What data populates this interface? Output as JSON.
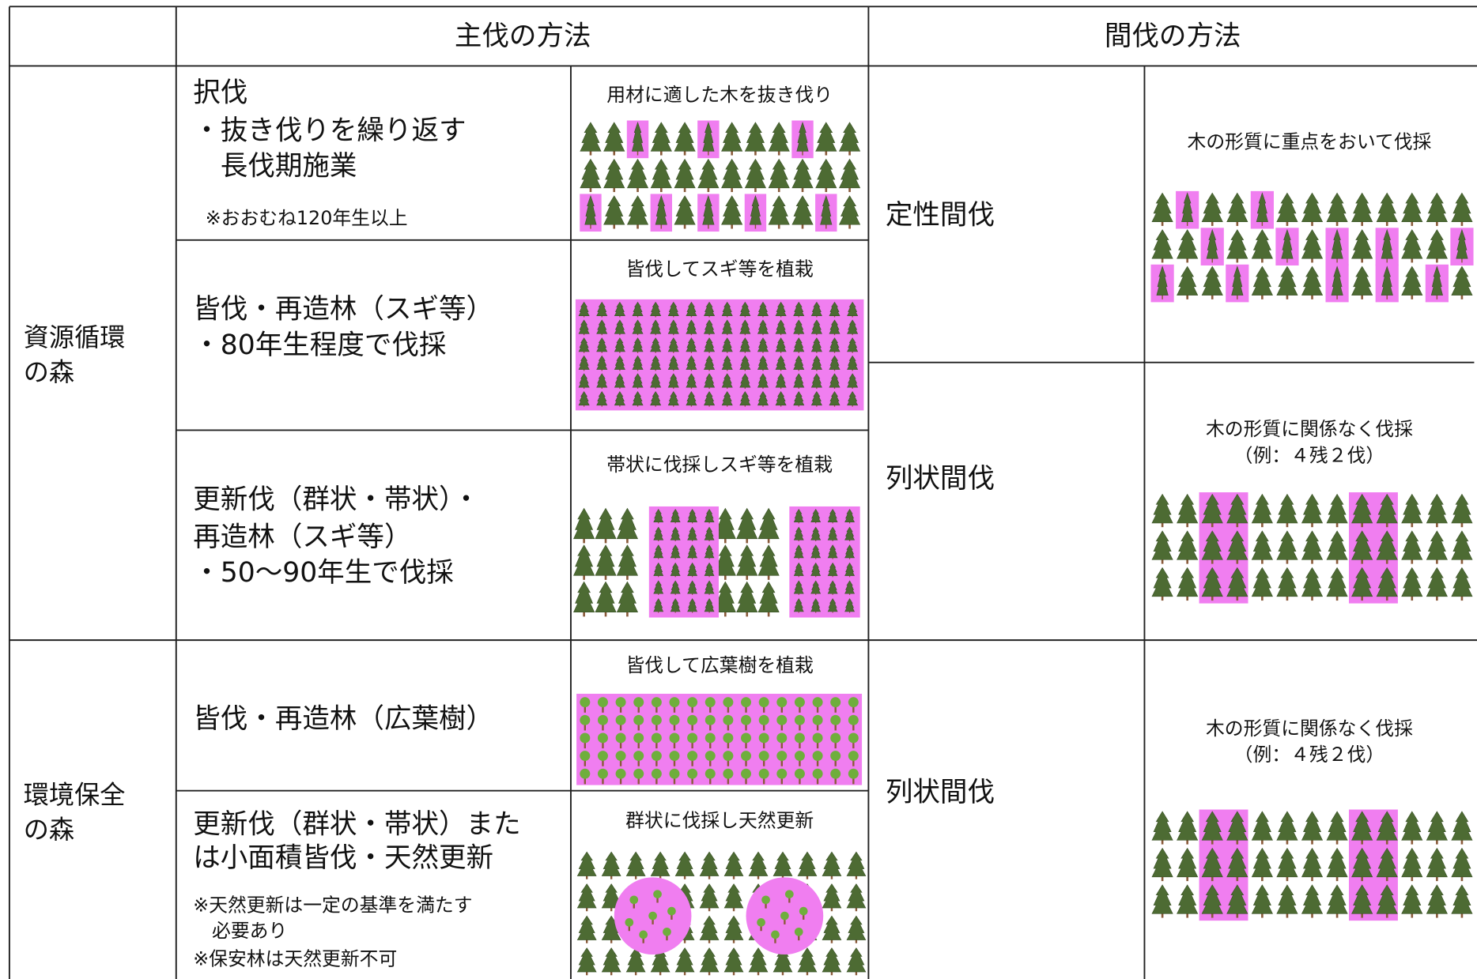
{
  "header": {
    "main_cut": "主伐の方法",
    "thinning": "間伐の方法"
  },
  "sections": [
    {
      "label": [
        "資源循環",
        "の森"
      ],
      "main": [
        {
          "lines": [
            "択伐",
            "・抜き伐りを繰り返す",
            "　長伐期施業"
          ],
          "notes": [
            "※おおむね120年生以上"
          ],
          "caption": "用材に適した木を抜き伐り"
        },
        {
          "lines": [
            "皆伐・再造林（スギ等）",
            "・80年生程度で伐採"
          ],
          "caption": "皆伐してスギ等を植栽"
        },
        {
          "lines": [
            "更新伐（群状・帯状）・",
            "再造林（スギ等）",
            "・50～90年生で伐採"
          ],
          "caption": "帯状に伐採しスギ等を植栽"
        }
      ],
      "thinning": [
        {
          "name": "定性間伐",
          "caption": [
            "木の形質に重点をおいて伐採"
          ]
        },
        {
          "name": "列状間伐",
          "caption": [
            "木の形質に関係なく伐採",
            "（例：４残２伐）"
          ]
        }
      ]
    },
    {
      "label": [
        "環境保全",
        "の森"
      ],
      "main": [
        {
          "lines": [
            "皆伐・再造林（広葉樹）"
          ],
          "caption": "皆伐して広葉樹を植栽"
        },
        {
          "lines": [
            "更新伐（群状・帯状）また",
            "は小面積皆伐・天然更新"
          ],
          "notes": [
            "※天然更新は一定の基準を満たす",
            "　必要あり",
            "※保安林は天然更新不可"
          ],
          "caption": "群状に伐採し天然更新"
        }
      ],
      "thinning": [
        {
          "name": "列状間伐",
          "caption": [
            "木の形質に関係なく伐採",
            "（例：４残２伐）"
          ]
        }
      ]
    }
  ]
}
